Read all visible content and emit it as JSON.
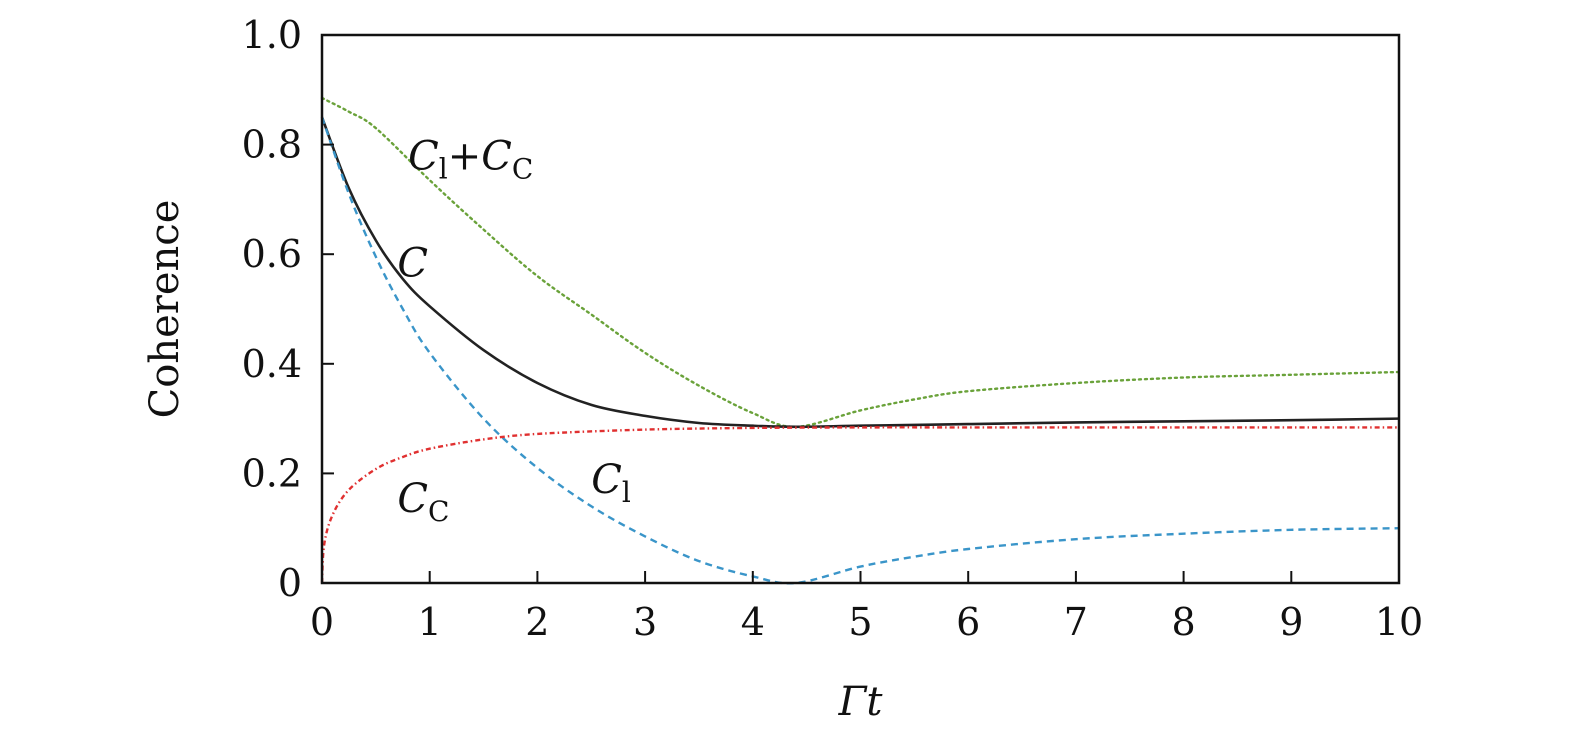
{
  "chart_data": {
    "type": "line",
    "xlabel": "Γt",
    "ylabel": "Coherence",
    "xlim": [
      0,
      10
    ],
    "ylim": [
      0,
      1.0
    ],
    "x_ticks": [
      "0",
      "1",
      "2",
      "3",
      "4",
      "5",
      "6",
      "7",
      "8",
      "9",
      "10"
    ],
    "y_ticks": [
      "0",
      "0.2",
      "0.4",
      "0.6",
      "0.8",
      "1.0"
    ],
    "grid": false,
    "series": [
      {
        "name": "C_l + C_C",
        "color": "#6aa23a",
        "style": "dotted",
        "x": [
          0,
          0.25,
          0.5,
          1,
          1.5,
          2,
          2.5,
          3,
          3.5,
          4,
          4.4,
          5,
          5.5,
          6,
          7,
          8,
          9,
          10
        ],
        "y": [
          0.885,
          0.86,
          0.83,
          0.735,
          0.645,
          0.56,
          0.49,
          0.42,
          0.36,
          0.31,
          0.285,
          0.315,
          0.335,
          0.35,
          0.365,
          0.375,
          0.38,
          0.385
        ]
      },
      {
        "name": "C",
        "color": "#222222",
        "style": "solid",
        "x": [
          0,
          0.25,
          0.5,
          0.75,
          1,
          1.5,
          2,
          2.5,
          3,
          3.5,
          4,
          4.4,
          5,
          6,
          7,
          8,
          9,
          10
        ],
        "y": [
          0.85,
          0.72,
          0.625,
          0.555,
          0.505,
          0.425,
          0.365,
          0.325,
          0.305,
          0.292,
          0.287,
          0.285,
          0.287,
          0.29,
          0.293,
          0.295,
          0.297,
          0.3
        ]
      },
      {
        "name": "C_l",
        "color": "#3a95c9",
        "style": "dashed",
        "x": [
          0,
          0.25,
          0.5,
          0.75,
          1,
          1.5,
          2,
          2.5,
          3,
          3.5,
          4,
          4.4,
          5,
          5.5,
          6,
          7,
          8,
          9,
          10
        ],
        "y": [
          0.85,
          0.71,
          0.595,
          0.5,
          0.42,
          0.3,
          0.21,
          0.14,
          0.085,
          0.04,
          0.012,
          0.0,
          0.03,
          0.048,
          0.062,
          0.08,
          0.09,
          0.097,
          0.1
        ]
      },
      {
        "name": "C_C",
        "color": "#e03030",
        "style": "dashdot",
        "x": [
          0,
          0.02,
          0.1,
          0.25,
          0.5,
          0.75,
          1,
          1.5,
          2,
          3,
          4,
          5,
          6,
          7,
          8,
          9,
          10
        ],
        "y": [
          0.0,
          0.07,
          0.125,
          0.17,
          0.208,
          0.23,
          0.245,
          0.262,
          0.272,
          0.28,
          0.283,
          0.284,
          0.284,
          0.284,
          0.284,
          0.284,
          0.284
        ]
      }
    ],
    "annotations": [
      {
        "label_main": "C",
        "label_sub": "l",
        "plus": "+",
        "label_main2": "C",
        "label_sub2": "C",
        "x": 0.8,
        "y": 0.78
      },
      {
        "label_main": "C",
        "x": 0.7,
        "y": 0.585
      },
      {
        "label_main": "C",
        "label_sub": "l",
        "x": 2.5,
        "y": 0.19
      },
      {
        "label_main": "C",
        "label_sub": "C",
        "x": 0.7,
        "y": 0.155
      }
    ]
  }
}
